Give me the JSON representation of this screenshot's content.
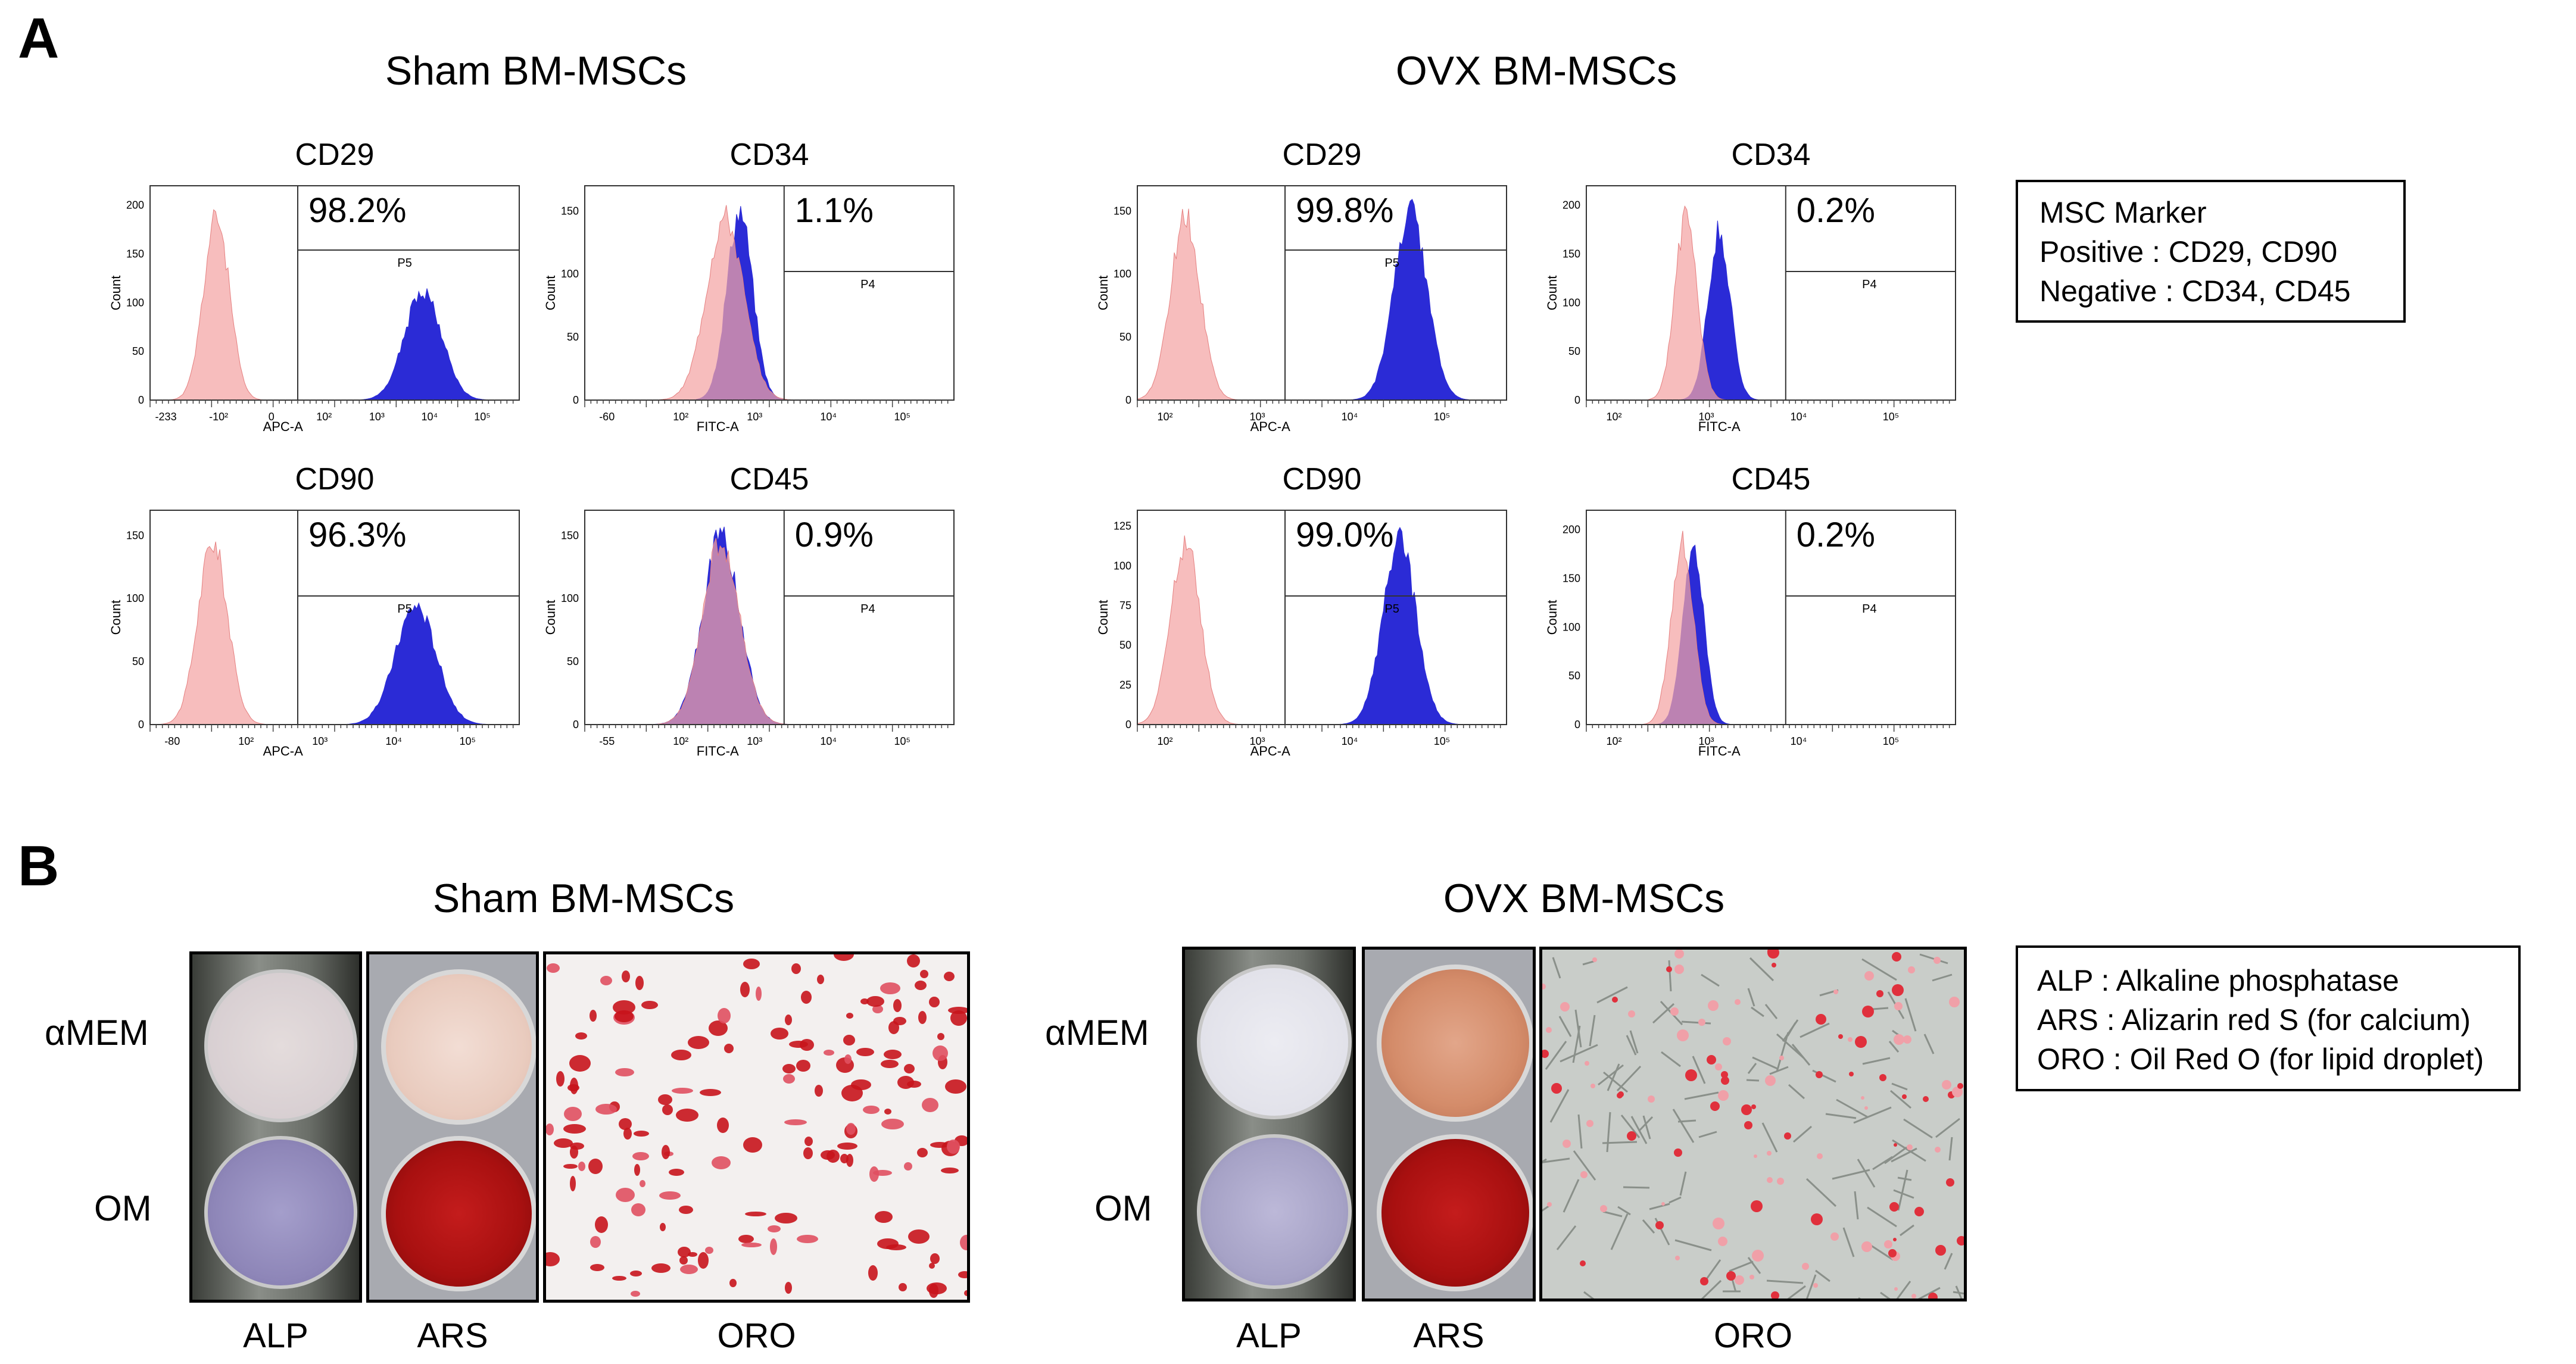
{
  "panels": {
    "a": {
      "label": "A",
      "groups": [
        {
          "title": "Sham BM-MSCs",
          "plots": [
            {
              "title": "CD29",
              "percent": "98.2%",
              "gate": "P5",
              "axis_label": "APC-A",
              "y_label": "Count",
              "y_ticks": [
                "0",
                "50",
                "100",
                "150",
                "200"
              ],
              "x_ticks": [
                "-233",
                "-10²",
                "0",
                "10²",
                "10³",
                "10⁴",
                "10⁵"
              ]
            },
            {
              "title": "CD34",
              "percent": "1.1%",
              "gate": "P4",
              "axis_label": "FITC-A",
              "y_label": "Count",
              "y_ticks": [
                "0",
                "50",
                "100",
                "150"
              ],
              "x_ticks": [
                "-60",
                "10²",
                "10³",
                "10⁴",
                "10⁵"
              ]
            },
            {
              "title": "CD90",
              "percent": "96.3%",
              "gate": "P5",
              "axis_label": "APC-A",
              "y_label": "Count",
              "y_ticks": [
                "0",
                "50",
                "100",
                "150"
              ],
              "x_ticks": [
                "-80",
                "10²",
                "10³",
                "10⁴",
                "10⁵"
              ]
            },
            {
              "title": "CD45",
              "percent": "0.9%",
              "gate": "P4",
              "axis_label": "FITC-A",
              "y_label": "Count",
              "y_ticks": [
                "0",
                "50",
                "100",
                "150"
              ],
              "x_ticks": [
                "-55",
                "10²",
                "10³",
                "10⁴",
                "10⁵"
              ]
            }
          ]
        },
        {
          "title": "OVX BM-MSCs",
          "plots": [
            {
              "title": "CD29",
              "percent": "99.8%",
              "gate": "P5",
              "axis_label": "APC-A",
              "y_label": "Count",
              "y_ticks": [
                "0",
                "50",
                "100",
                "150"
              ],
              "x_ticks": [
                "10²",
                "10³",
                "10⁴",
                "10⁵"
              ]
            },
            {
              "title": "CD34",
              "percent": "0.2%",
              "gate": "P4",
              "axis_label": "FITC-A",
              "y_label": "Count",
              "y_ticks": [
                "0",
                "50",
                "100",
                "150",
                "200"
              ],
              "x_ticks": [
                "10²",
                "10³",
                "10⁴",
                "10⁵"
              ]
            },
            {
              "title": "CD90",
              "percent": "99.0%",
              "gate": "P5",
              "axis_label": "APC-A",
              "y_label": "Count",
              "y_ticks": [
                "0",
                "25",
                "50",
                "75",
                "100",
                "125"
              ],
              "x_ticks": [
                "10²",
                "10³",
                "10⁴",
                "10⁵"
              ]
            },
            {
              "title": "CD45",
              "percent": "0.2%",
              "gate": "P4",
              "axis_label": "FITC-A",
              "y_label": "Count",
              "y_ticks": [
                "0",
                "50",
                "100",
                "150",
                "200"
              ],
              "x_ticks": [
                "10²",
                "10³",
                "10⁴",
                "10⁵"
              ]
            }
          ]
        }
      ],
      "legend": {
        "title": "MSC Marker",
        "positive": "Positive : CD29, CD90",
        "negative": "Negative : CD34, CD45"
      }
    },
    "b": {
      "label": "B",
      "groups": [
        {
          "title": "Sham BM-MSCs",
          "row_top": "αMEM",
          "row_bottom": "OM",
          "cols": [
            "ALP",
            "ARS",
            "ORO"
          ]
        },
        {
          "title": "OVX BM-MSCs",
          "row_top": "αMEM",
          "row_bottom": "OM",
          "cols": [
            "ALP",
            "ARS",
            "ORO"
          ]
        }
      ],
      "legend": {
        "alp": "ALP : Alkaline phosphatase",
        "ars": "ARS : Alizarin red S (for calcium)",
        "oro": "ORO : Oil Red O (for lipid droplet)"
      }
    }
  },
  "colors": {
    "control": "#f4a3a3",
    "stained": "#2b2bd6",
    "overlap": "#a070c0",
    "ars_red": "#b81414",
    "alp_purple": "#8e86b8"
  }
}
